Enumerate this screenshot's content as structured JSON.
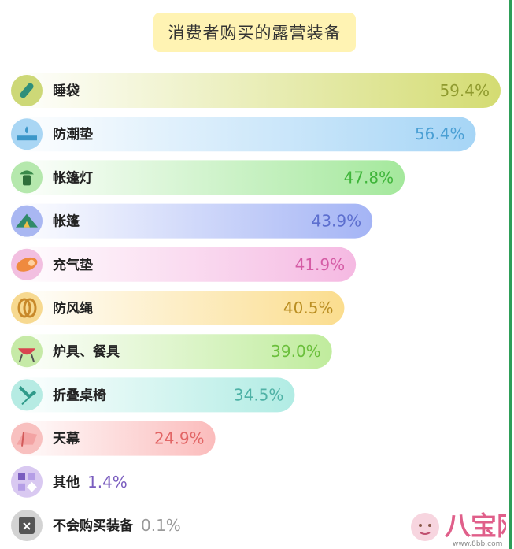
{
  "title": "消费者购买的露营装备",
  "chart_data": {
    "type": "bar",
    "orientation": "horizontal",
    "title": "消费者购买的露营装备",
    "value_format": "percent",
    "xlim": [
      0,
      59.4
    ],
    "categories": [
      "睡袋",
      "防潮垫",
      "帐篷灯",
      "帐篷",
      "充气垫",
      "防风绳",
      "炉具、餐具",
      "折叠桌椅",
      "天幕",
      "其他",
      "不会购买装备"
    ],
    "values": [
      59.4,
      56.4,
      47.8,
      43.9,
      41.9,
      40.5,
      39.0,
      34.5,
      24.9,
      1.4,
      0.1
    ],
    "value_labels": [
      "59.4%",
      "56.4%",
      "47.8%",
      "43.9%",
      "41.9%",
      "40.5%",
      "39.0%",
      "34.5%",
      "24.9%",
      "1.4%",
      "0.1%"
    ],
    "icons": [
      "sleeping-bag-icon",
      "moisture-mat-icon",
      "tent-lamp-icon",
      "tent-icon",
      "air-mattress-icon",
      "windproof-rope-icon",
      "grill-icon",
      "folding-chair-icon",
      "canopy-icon",
      "other-blocks-icon",
      "no-purchase-icon"
    ],
    "colors": [
      {
        "bar": "#d4dc72",
        "text": "#8f9a2e",
        "icon_bg": "#cdd877"
      },
      {
        "bar": "#a6d5f6",
        "text": "#4a9fd4",
        "icon_bg": "#a9d6f4"
      },
      {
        "bar": "#a4e89c",
        "text": "#3fb53a",
        "icon_bg": "#b5e8ad"
      },
      {
        "bar": "#a4b4f5",
        "text": "#5d6fcf",
        "icon_bg": "#a9b7f2"
      },
      {
        "bar": "#f5b9e2",
        "text": "#d55ca5",
        "icon_bg": "#f2bfe0"
      },
      {
        "bar": "#fbdd8e",
        "text": "#ba8e22",
        "icon_bg": "#f7d990"
      },
      {
        "bar": "#c0ec9d",
        "text": "#6bbf3c",
        "icon_bg": "#c6eaa7"
      },
      {
        "bar": "#b1ece4",
        "text": "#4fb2a6",
        "icon_bg": "#b6ebe3"
      },
      {
        "bar": "#fbbcbc",
        "text": "#e26565",
        "icon_bg": "#f8c0bf"
      },
      {
        "bar": "#d9caf2",
        "text": "#7a5dbf",
        "icon_bg": "#d9c9f1"
      },
      {
        "bar": "#d6d6d6",
        "text": "#9a9a9a",
        "icon_bg": "#d3d3d3"
      }
    ]
  },
  "watermark": {
    "text": "八宝网",
    "url": "www.8bb.com"
  }
}
